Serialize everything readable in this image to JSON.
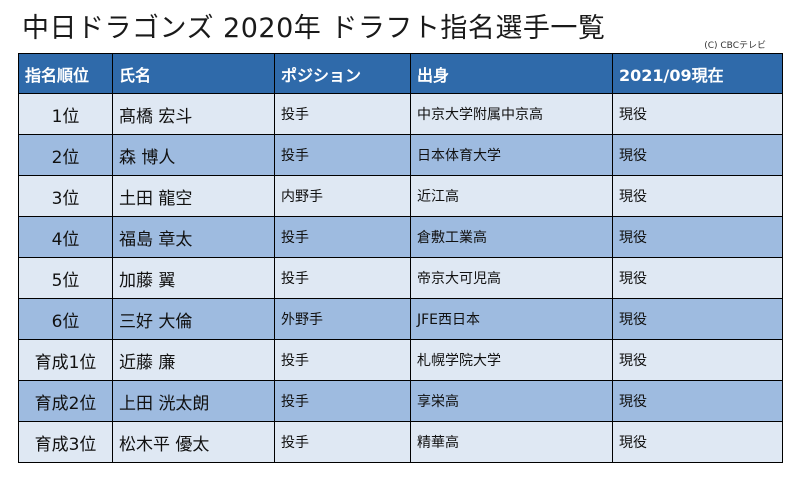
{
  "title": "中日ドラゴンズ 2020年 ドラフト指名選手一覧",
  "credit": "(C) CBCテレビ",
  "colors": {
    "header_bg": "#2f6aaa",
    "row_light": "#dfe8f3",
    "row_dark": "#9ebbe0"
  },
  "table": {
    "headers": [
      "指名順位",
      "氏名",
      "ポジション",
      "出身",
      "2021/09現在"
    ],
    "rows": [
      [
        "1位",
        "髙橋 宏斗",
        "投手",
        "中京大学附属中京高",
        "現役"
      ],
      [
        "2位",
        "森 博人",
        "投手",
        "日本体育大学",
        "現役"
      ],
      [
        "3位",
        "土田 龍空",
        "内野手",
        "近江高",
        "現役"
      ],
      [
        "4位",
        "福島 章太",
        "投手",
        "倉敷工業高",
        "現役"
      ],
      [
        "5位",
        "加藤 翼",
        "投手",
        "帝京大可児高",
        "現役"
      ],
      [
        "6位",
        "三好 大倫",
        "外野手",
        "JFE西日本",
        "現役"
      ],
      [
        "育成1位",
        "近藤 廉",
        "投手",
        "札幌学院大学",
        "現役"
      ],
      [
        "育成2位",
        "上田 洸太朗",
        "投手",
        "享栄高",
        "現役"
      ],
      [
        "育成3位",
        "松木平 優太",
        "投手",
        "精華高",
        "現役"
      ]
    ]
  }
}
